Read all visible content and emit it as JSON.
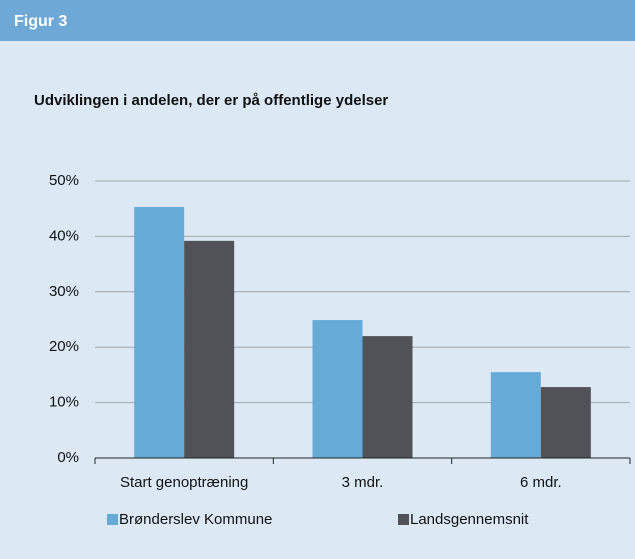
{
  "header": {
    "title": "Figur 3"
  },
  "chart_data": {
    "type": "bar",
    "title": "Udviklingen i andelen, der er på offentlige ydelser",
    "categories": [
      "Start genoptræning",
      "3 mdr.",
      "6 mdr."
    ],
    "series": [
      {
        "name": "Brønderslev Kommune",
        "color": "#66abd8",
        "values": [
          45.3,
          24.9,
          15.5
        ]
      },
      {
        "name": "Landsgennemsnit",
        "color": "#505257",
        "values": [
          39.2,
          22.0,
          12.8
        ]
      }
    ],
    "ylim": [
      0,
      50
    ],
    "yticks": [
      {
        "value": 0,
        "label": "0%"
      },
      {
        "value": 10,
        "label": "10%"
      },
      {
        "value": 20,
        "label": "20%"
      },
      {
        "value": 30,
        "label": "30%"
      },
      {
        "value": 40,
        "label": "40%"
      },
      {
        "value": 50,
        "label": "50%"
      }
    ],
    "grid": true,
    "legend": "bottom"
  }
}
